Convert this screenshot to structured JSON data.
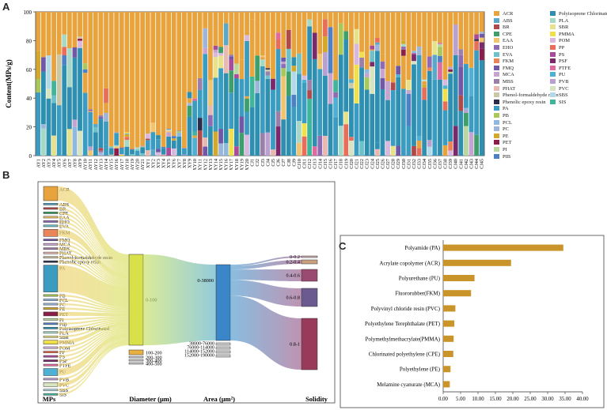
{
  "panels": {
    "a": "A",
    "b": "B",
    "c": "C"
  },
  "chart_data": [
    {
      "type": "bar",
      "stacked": true,
      "panel": "A",
      "ylabel": "Content(MPs/g)",
      "ylim": [
        0,
        100
      ],
      "yticks": [
        0,
        20,
        40,
        60,
        80,
        100
      ],
      "categories": [
        "AY1",
        "AY2",
        "AY3",
        "AY4",
        "AY5",
        "AY6",
        "AY7",
        "AY8",
        "AY9",
        "AY10",
        "AY11",
        "AY12",
        "AY13",
        "AY14",
        "AY15",
        "AY16",
        "AY17",
        "AY18",
        "AY19",
        "AY20",
        "AY21",
        "XY1",
        "XY2",
        "XY3",
        "XY4",
        "XY5",
        "XY6",
        "XY7",
        "XY8",
        "XY9",
        "XY10",
        "XY11",
        "XY12",
        "XY13",
        "XY14",
        "XY15",
        "XY16",
        "XY17",
        "XY18",
        "XY19",
        "XY20",
        "CJ1",
        "CJ2",
        "CJ3",
        "CJ4",
        "CJ5",
        "CJ6",
        "CJ7",
        "CJ8",
        "CJ9",
        "CJ10",
        "CJ11",
        "CJ12",
        "CJ13",
        "CJ14",
        "CJ15",
        "CJ16",
        "CJ17",
        "CJ18",
        "CJ19",
        "CJ20",
        "CJ21",
        "CJ22",
        "CJ23",
        "CJ24",
        "CJ25",
        "CJ26",
        "CJ27",
        "CJ28",
        "CJ29",
        "CJ30",
        "CJ31",
        "CJ32",
        "CJ33",
        "CJ34",
        "CJ35",
        "CJ36",
        "CJ37",
        "CJ38",
        "CJ39",
        "CJ40",
        "CJ41",
        "CJ42",
        "CJ43",
        "CJ44",
        "CJ45"
      ],
      "series_note": "percent composition per sample; values approximated from the figure",
      "legend": [
        {
          "name": "ACR",
          "color": "#e8a33d"
        },
        {
          "name": "ABS",
          "color": "#5aa8c8"
        },
        {
          "name": "BR",
          "color": "#b04a4a"
        },
        {
          "name": "CPE",
          "color": "#3f9f6b"
        },
        {
          "name": "EAA",
          "color": "#f2c46d"
        },
        {
          "name": "EHO",
          "color": "#8f6bb3"
        },
        {
          "name": "EVA",
          "color": "#6cc2c8"
        },
        {
          "name": "FKM",
          "color": "#e98558"
        },
        {
          "name": "FMQ",
          "color": "#7158a6"
        },
        {
          "name": "MCA",
          "color": "#c7a3cf"
        },
        {
          "name": "MBS",
          "color": "#9a7fa9"
        },
        {
          "name": "PHAT",
          "color": "#e8b9b0"
        },
        {
          "name": "Phenol-formaldehyde resin",
          "color": "#c9c7a5"
        },
        {
          "name": "Phenolic epoxy resin",
          "color": "#2b2b4a"
        },
        {
          "name": "PA",
          "color": "#3b9cc2"
        },
        {
          "name": "PB",
          "color": "#a8c85a"
        },
        {
          "name": "PCL",
          "color": "#8fb8de"
        },
        {
          "name": "PC",
          "color": "#9db5d8"
        },
        {
          "name": "PE",
          "color": "#d4a82a"
        },
        {
          "name": "PET",
          "color": "#8c1f4a"
        },
        {
          "name": "PI",
          "color": "#b8d8a0"
        },
        {
          "name": "PIB",
          "color": "#4f7fc4"
        },
        {
          "name": "Polyisoprene Chlorinated",
          "color": "#2f8fb0"
        },
        {
          "name": "PLA",
          "color": "#a7d7c5"
        },
        {
          "name": "SBR",
          "color": "#e6e28a"
        },
        {
          "name": "PMMA",
          "color": "#f0e04a"
        },
        {
          "name": "POM",
          "color": "#d9b8e0"
        },
        {
          "name": "PP",
          "color": "#e86e5a"
        },
        {
          "name": "PS",
          "color": "#a84b9a"
        },
        {
          "name": "PSF",
          "color": "#7a2a6a"
        },
        {
          "name": "PTFE",
          "color": "#e06aa0"
        },
        {
          "name": "PU",
          "color": "#4fb0d6"
        },
        {
          "name": "PVB",
          "color": "#b8a0d0"
        },
        {
          "name": "PVC",
          "color": "#d8e4c0"
        },
        {
          "name": "SBS",
          "color": "#b3d9e8"
        },
        {
          "name": "SIS",
          "color": "#3fb59a"
        }
      ]
    },
    {
      "type": "sankey",
      "panel": "B",
      "stages": [
        "MPs",
        "Diameter (μm)",
        "Area (μm²)",
        "Solidity"
      ],
      "mps_nodes": [
        "ACR",
        "ABS",
        "BR",
        "CPE",
        "EAA",
        "EHO",
        "EVA",
        "FKM",
        "FMQ",
        "MCA",
        "MBS",
        "PHAT",
        "Phenol-formaldehyde resin",
        "Phenolic epoxy resin",
        "PA",
        "PB",
        "PCL",
        "PC",
        "PE",
        "PET",
        "PI",
        "PIB",
        "Polyisoprene Chlorinated",
        "PLA",
        "SBR",
        "PMMA",
        "POM",
        "PP",
        "PS",
        "PSF",
        "PTFE",
        "PU",
        "PVB",
        "PVC",
        "SBS",
        "SIS"
      ],
      "diameter_nodes": [
        "0-100",
        "100-200",
        "200-300",
        "300-400",
        "400-500"
      ],
      "area_nodes": [
        "0-38000",
        "38000-76000",
        "76000-114000",
        "114000-152000",
        "152000-190000"
      ],
      "solidity_nodes": [
        "0-0.2",
        "0.2-0.4",
        "0.4-0.6",
        "0.6-0.8",
        "0.8-1"
      ]
    },
    {
      "type": "bar",
      "orientation": "horizontal",
      "panel": "C",
      "categories": [
        "Polyamide (PA)",
        "Acrylate copolymer (ACR)",
        "Polyurethane (PU)",
        "Fluororubber(FKM)",
        "Polyvinyl chloride resin (PVC)",
        "Polyethylene Terephthalate (PET)",
        "Polymethylmethacrylate(PMMA)",
        "Chlorinated polyethylene (CPE)",
        "Polyethylene (PE)",
        "Melamine cyanurate (MCA)"
      ],
      "values": [
        34.5,
        19.5,
        9.0,
        8.0,
        3.5,
        3.2,
        3.0,
        2.9,
        2.1,
        1.9
      ],
      "xlim": [
        0,
        40
      ],
      "xticks": [
        "0.00",
        "5.00",
        "10.00",
        "15.00",
        "20.00",
        "25.00",
        "30.00",
        "35.00",
        "40.00"
      ],
      "bar_color": "#c9952a"
    }
  ]
}
